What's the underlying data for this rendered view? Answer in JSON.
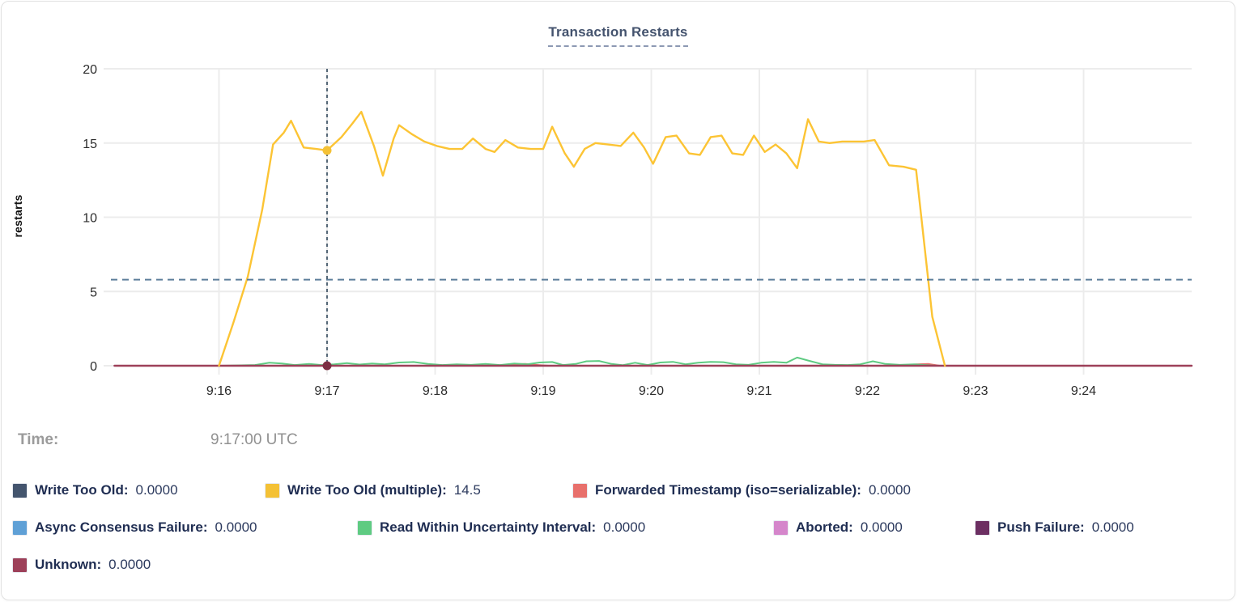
{
  "title": "Transaction Restarts",
  "tooltip": {
    "time_label": "Time:",
    "time_value": "9:17:00 UTC"
  },
  "legend_rows": [
    [
      {
        "label": "Write Too Old",
        "value": "0.0000",
        "color": "#44556e"
      },
      {
        "label": "Write Too Old (multiple)",
        "value": "14.5",
        "color": "#f4c135"
      },
      {
        "label": "Forwarded Timestamp (iso=serializable)",
        "value": "0.0000",
        "color": "#e8706c"
      }
    ],
    [
      {
        "label": "Async Consensus Failure",
        "value": "0.0000",
        "color": "#5fa0d6"
      },
      {
        "label": "Read Within Uncertainty Interval",
        "value": "0.0000",
        "color": "#5fcb82"
      },
      {
        "label": "Aborted",
        "value": "0.0000",
        "color": "#d586cb"
      },
      {
        "label": "Push Failure",
        "value": "0.0000",
        "color": "#6c2f62"
      }
    ],
    [
      {
        "label": "Unknown",
        "value": "0.0000",
        "color": "#9d4059"
      }
    ]
  ],
  "chart_data": {
    "type": "line",
    "title": "Transaction Restarts",
    "xlabel": "",
    "ylabel": "restarts",
    "ylim": [
      0,
      20
    ],
    "yticks": [
      0,
      5,
      10,
      15,
      20
    ],
    "x_domain_seconds": [
      0,
      600
    ],
    "x_domain_times": [
      "9:15:00",
      "9:25:00"
    ],
    "xticks": {
      "seconds": [
        60,
        120,
        180,
        240,
        300,
        360,
        420,
        480,
        540
      ],
      "labels": [
        "9:16",
        "9:17",
        "9:18",
        "9:19",
        "9:20",
        "9:21",
        "9:22",
        "9:23",
        "9:24"
      ]
    },
    "grid": true,
    "legend_position": "below",
    "hover": {
      "time": "9:17:00 UTC",
      "time_seconds": 120,
      "hline_value": 5.8,
      "vline_color": "#31475c",
      "hline_color": "#5d7e9b",
      "markers": [
        {
          "series": "Write Too Old (multiple)",
          "value": 14.5,
          "dot_color": "#f4c135"
        },
        {
          "series": "Unknown",
          "value": 0,
          "dot_color": "#7d2f44"
        }
      ]
    },
    "series": [
      {
        "name": "Write Too Old",
        "color": "#44556e",
        "width": 2,
        "points": [
          [
            2,
            0
          ],
          [
            600,
            0
          ]
        ]
      },
      {
        "name": "Async Consensus Failure",
        "color": "#5fa0d6",
        "width": 2,
        "points": [
          [
            2,
            0
          ],
          [
            600,
            0
          ]
        ]
      },
      {
        "name": "Aborted",
        "color": "#d586cb",
        "width": 2,
        "points": [
          [
            2,
            0
          ],
          [
            600,
            0
          ]
        ]
      },
      {
        "name": "Push Failure",
        "color": "#6c2f62",
        "width": 2,
        "points": [
          [
            2,
            0
          ],
          [
            600,
            0
          ]
        ]
      },
      {
        "name": "Forwarded Timestamp (iso=serializable)",
        "color": "#e8706c",
        "width": 2,
        "points": [
          [
            2,
            0
          ],
          [
            216,
            0
          ],
          [
            222,
            0.1
          ],
          [
            230,
            0.12
          ],
          [
            237,
            0.05
          ],
          [
            243,
            0
          ],
          [
            440,
            0
          ],
          [
            447,
            0.1
          ],
          [
            454,
            0.12
          ],
          [
            460,
            0
          ],
          [
            600,
            0
          ]
        ]
      },
      {
        "name": "Read Within Uncertainty Interval",
        "color": "#5fcb82",
        "width": 2,
        "points": [
          [
            62,
            0
          ],
          [
            80,
            0.05
          ],
          [
            88,
            0.2
          ],
          [
            95,
            0.15
          ],
          [
            102,
            0.05
          ],
          [
            110,
            0.12
          ],
          [
            117,
            0.05
          ],
          [
            124,
            0.1
          ],
          [
            131,
            0.18
          ],
          [
            138,
            0.08
          ],
          [
            145,
            0.15
          ],
          [
            152,
            0.1
          ],
          [
            160,
            0.22
          ],
          [
            168,
            0.25
          ],
          [
            176,
            0.12
          ],
          [
            184,
            0.05
          ],
          [
            192,
            0.1
          ],
          [
            200,
            0.06
          ],
          [
            208,
            0.12
          ],
          [
            216,
            0.05
          ],
          [
            224,
            0.15
          ],
          [
            231,
            0.1
          ],
          [
            238,
            0.22
          ],
          [
            245,
            0.25
          ],
          [
            251,
            0.05
          ],
          [
            258,
            0.12
          ],
          [
            264,
            0.3
          ],
          [
            271,
            0.32
          ],
          [
            278,
            0.12
          ],
          [
            284,
            0.04
          ],
          [
            291,
            0.2
          ],
          [
            298,
            0.05
          ],
          [
            305,
            0.22
          ],
          [
            312,
            0.26
          ],
          [
            319,
            0.1
          ],
          [
            326,
            0.2
          ],
          [
            333,
            0.26
          ],
          [
            340,
            0.24
          ],
          [
            347,
            0.1
          ],
          [
            354,
            0.06
          ],
          [
            361,
            0.2
          ],
          [
            368,
            0.26
          ],
          [
            375,
            0.2
          ],
          [
            381,
            0.55
          ],
          [
            388,
            0.32
          ],
          [
            395,
            0.1
          ],
          [
            402,
            0.06
          ],
          [
            409,
            0.05
          ],
          [
            416,
            0.1
          ],
          [
            423,
            0.3
          ],
          [
            430,
            0.12
          ],
          [
            438,
            0.06
          ],
          [
            446,
            0.1
          ],
          [
            452,
            0.05
          ],
          [
            458,
            0
          ]
        ]
      },
      {
        "name": "Unknown",
        "color": "#9d4059",
        "width": 2.4,
        "points": [
          [
            2,
            0
          ],
          [
            600,
            0
          ]
        ]
      },
      {
        "name": "Write Too Old (multiple)",
        "color": "#fcc434",
        "width": 2.4,
        "points": [
          [
            60,
            0
          ],
          [
            68,
            2.9
          ],
          [
            76,
            6
          ],
          [
            84,
            10.5
          ],
          [
            90,
            14.9
          ],
          [
            96,
            15.7
          ],
          [
            100,
            16.5
          ],
          [
            107,
            14.7
          ],
          [
            114,
            14.6
          ],
          [
            120,
            14.5
          ],
          [
            128,
            15.4
          ],
          [
            134,
            16.3
          ],
          [
            139,
            17.1
          ],
          [
            146,
            14.8
          ],
          [
            151,
            12.8
          ],
          [
            157,
            15.3
          ],
          [
            160,
            16.2
          ],
          [
            167,
            15.6
          ],
          [
            174,
            15.1
          ],
          [
            181,
            14.8
          ],
          [
            188,
            14.6
          ],
          [
            195,
            14.6
          ],
          [
            201,
            15.3
          ],
          [
            208,
            14.6
          ],
          [
            213,
            14.4
          ],
          [
            219,
            15.2
          ],
          [
            226,
            14.7
          ],
          [
            233,
            14.6
          ],
          [
            240,
            14.6
          ],
          [
            245,
            16.1
          ],
          [
            252,
            14.3
          ],
          [
            257,
            13.4
          ],
          [
            263,
            14.6
          ],
          [
            269,
            15.0
          ],
          [
            276,
            14.9
          ],
          [
            283,
            14.8
          ],
          [
            290,
            15.7
          ],
          [
            296,
            14.7
          ],
          [
            301,
            13.6
          ],
          [
            308,
            15.4
          ],
          [
            314,
            15.5
          ],
          [
            321,
            14.3
          ],
          [
            327,
            14.2
          ],
          [
            333,
            15.4
          ],
          [
            339,
            15.5
          ],
          [
            345,
            14.3
          ],
          [
            351,
            14.2
          ],
          [
            357,
            15.5
          ],
          [
            363,
            14.4
          ],
          [
            369,
            14.9
          ],
          [
            375,
            14.3
          ],
          [
            381,
            13.3
          ],
          [
            387,
            16.6
          ],
          [
            393,
            15.1
          ],
          [
            399,
            15.0
          ],
          [
            406,
            15.1
          ],
          [
            412,
            15.1
          ],
          [
            418,
            15.1
          ],
          [
            424,
            15.2
          ],
          [
            432,
            13.5
          ],
          [
            440,
            13.4
          ],
          [
            447,
            13.2
          ],
          [
            456,
            3.3
          ],
          [
            463,
            0
          ]
        ]
      }
    ]
  }
}
